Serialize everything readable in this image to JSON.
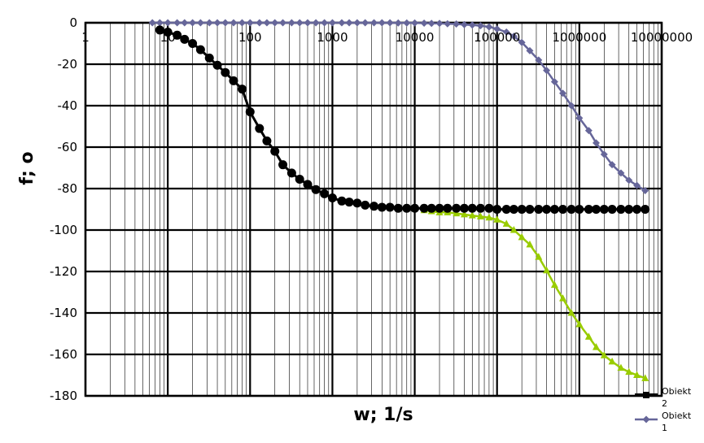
{
  "chart_data": {
    "type": "scatter",
    "xscale": "log",
    "xlim": [
      1,
      10000000
    ],
    "ylim": [
      -180,
      0
    ],
    "xlabel": "w; 1/s",
    "ylabel": "f; o",
    "xticks": [
      "1",
      "10",
      "100",
      "1000",
      "10000",
      "100000",
      "1000000",
      "10000000"
    ],
    "yticks": [
      "0",
      "-20",
      "-40",
      "-60",
      "-80",
      "-100",
      "-120",
      "-140",
      "-160",
      "-180"
    ],
    "grid": true,
    "legend_position": "bottom-right",
    "series": [
      {
        "name": "Obiekt 1",
        "color": "#666699",
        "marker": "diamond",
        "x": [
          6.5,
          8,
          10,
          13,
          16,
          20,
          25,
          32,
          40,
          50,
          63,
          80,
          100,
          130,
          160,
          200,
          250,
          320,
          400,
          500,
          630,
          800,
          1000,
          1300,
          1600,
          2000,
          2500,
          3200,
          4000,
          5000,
          6300,
          8000,
          10000,
          13000,
          16000,
          20000,
          25000,
          32000,
          40000,
          50000,
          63000,
          80000,
          100000,
          130000,
          160000,
          200000,
          250000,
          320000,
          400000,
          500000,
          630000,
          800000,
          1000000,
          1300000,
          1600000,
          2000000,
          2500000,
          3200000,
          4000000,
          5000000,
          6300000
        ],
        "y": [
          0,
          0,
          0,
          0,
          0,
          0,
          0,
          0,
          0,
          0,
          0,
          0,
          0,
          0,
          0,
          0,
          0,
          0,
          0,
          0,
          0,
          0,
          0,
          0,
          0,
          0,
          0,
          0,
          0,
          0,
          -0.1,
          -0.1,
          -0.1,
          -0.2,
          -0.3,
          -0.3,
          -0.5,
          -0.6,
          -0.9,
          -1.1,
          -1.4,
          -2.0,
          -3.0,
          -4.5,
          -6.5,
          -9.5,
          -13.5,
          -18,
          -23,
          -28.5,
          -34,
          -40,
          -46,
          -52,
          -58,
          -63.5,
          -68.5,
          -72.5,
          -76,
          -78.5,
          -81
        ]
      },
      {
        "name": "Obiekt 2",
        "color": "#000000",
        "marker": "circle",
        "x": [
          8,
          10,
          13,
          16,
          20,
          25,
          32,
          40,
          50,
          63,
          80,
          100,
          130,
          160,
          200,
          250,
          320,
          400,
          500,
          630,
          800,
          1000,
          1300,
          1600,
          2000,
          2500,
          3200,
          4000,
          5000,
          6300,
          8000,
          10000,
          13000,
          16000,
          20000,
          25000,
          32000,
          40000,
          50000,
          63000,
          80000,
          100000,
          130000,
          160000,
          200000,
          250000,
          320000,
          400000,
          500000,
          630000,
          800000,
          1000000,
          1300000,
          1600000,
          2000000,
          2500000,
          3200000,
          4000000,
          5000000,
          6300000
        ],
        "y": [
          -3.5,
          -4.5,
          -6,
          -8,
          -10,
          -13,
          -17,
          -20.5,
          -24,
          -28,
          -32,
          -43,
          -51,
          -57,
          -62,
          -68.5,
          -72.5,
          -75.5,
          -78,
          -80.5,
          -82.5,
          -84.5,
          -86,
          -86.5,
          -87,
          -88,
          -88.5,
          -89,
          -89,
          -89.5,
          -89.5,
          -89.5,
          -89.5,
          -89.5,
          -89.5,
          -89.5,
          -89.5,
          -89.5,
          -89.5,
          -89.5,
          -89.5,
          -90,
          -90,
          -90,
          -90,
          -90,
          -90,
          -90,
          -90,
          -90,
          -90,
          -90,
          -90,
          -90,
          -90,
          -90,
          -90,
          -90,
          -90,
          -90
        ]
      },
      {
        "name": "",
        "color": "#99cc00",
        "marker": "triangle",
        "x": [
          13000,
          16000,
          20000,
          25000,
          32000,
          40000,
          50000,
          63000,
          80000,
          100000,
          130000,
          160000,
          200000,
          250000,
          320000,
          400000,
          500000,
          630000,
          800000,
          1000000,
          1300000,
          1600000,
          2000000,
          2500000,
          3200000,
          4000000,
          5000000,
          6300000
        ],
        "y": [
          -90.5,
          -91,
          -91.5,
          -91.5,
          -92,
          -92.5,
          -93,
          -93.5,
          -94,
          -95,
          -97,
          -100,
          -103.5,
          -107,
          -113,
          -119.5,
          -126.5,
          -133,
          -140,
          -145.5,
          -151.5,
          -156.5,
          -160.5,
          -163.5,
          -166.5,
          -168.5,
          -170,
          -171.5
        ]
      }
    ],
    "legend": [
      {
        "label": "Obiekt 2",
        "series": 1
      },
      {
        "label": "Obiekt 1",
        "series": 0
      }
    ]
  }
}
